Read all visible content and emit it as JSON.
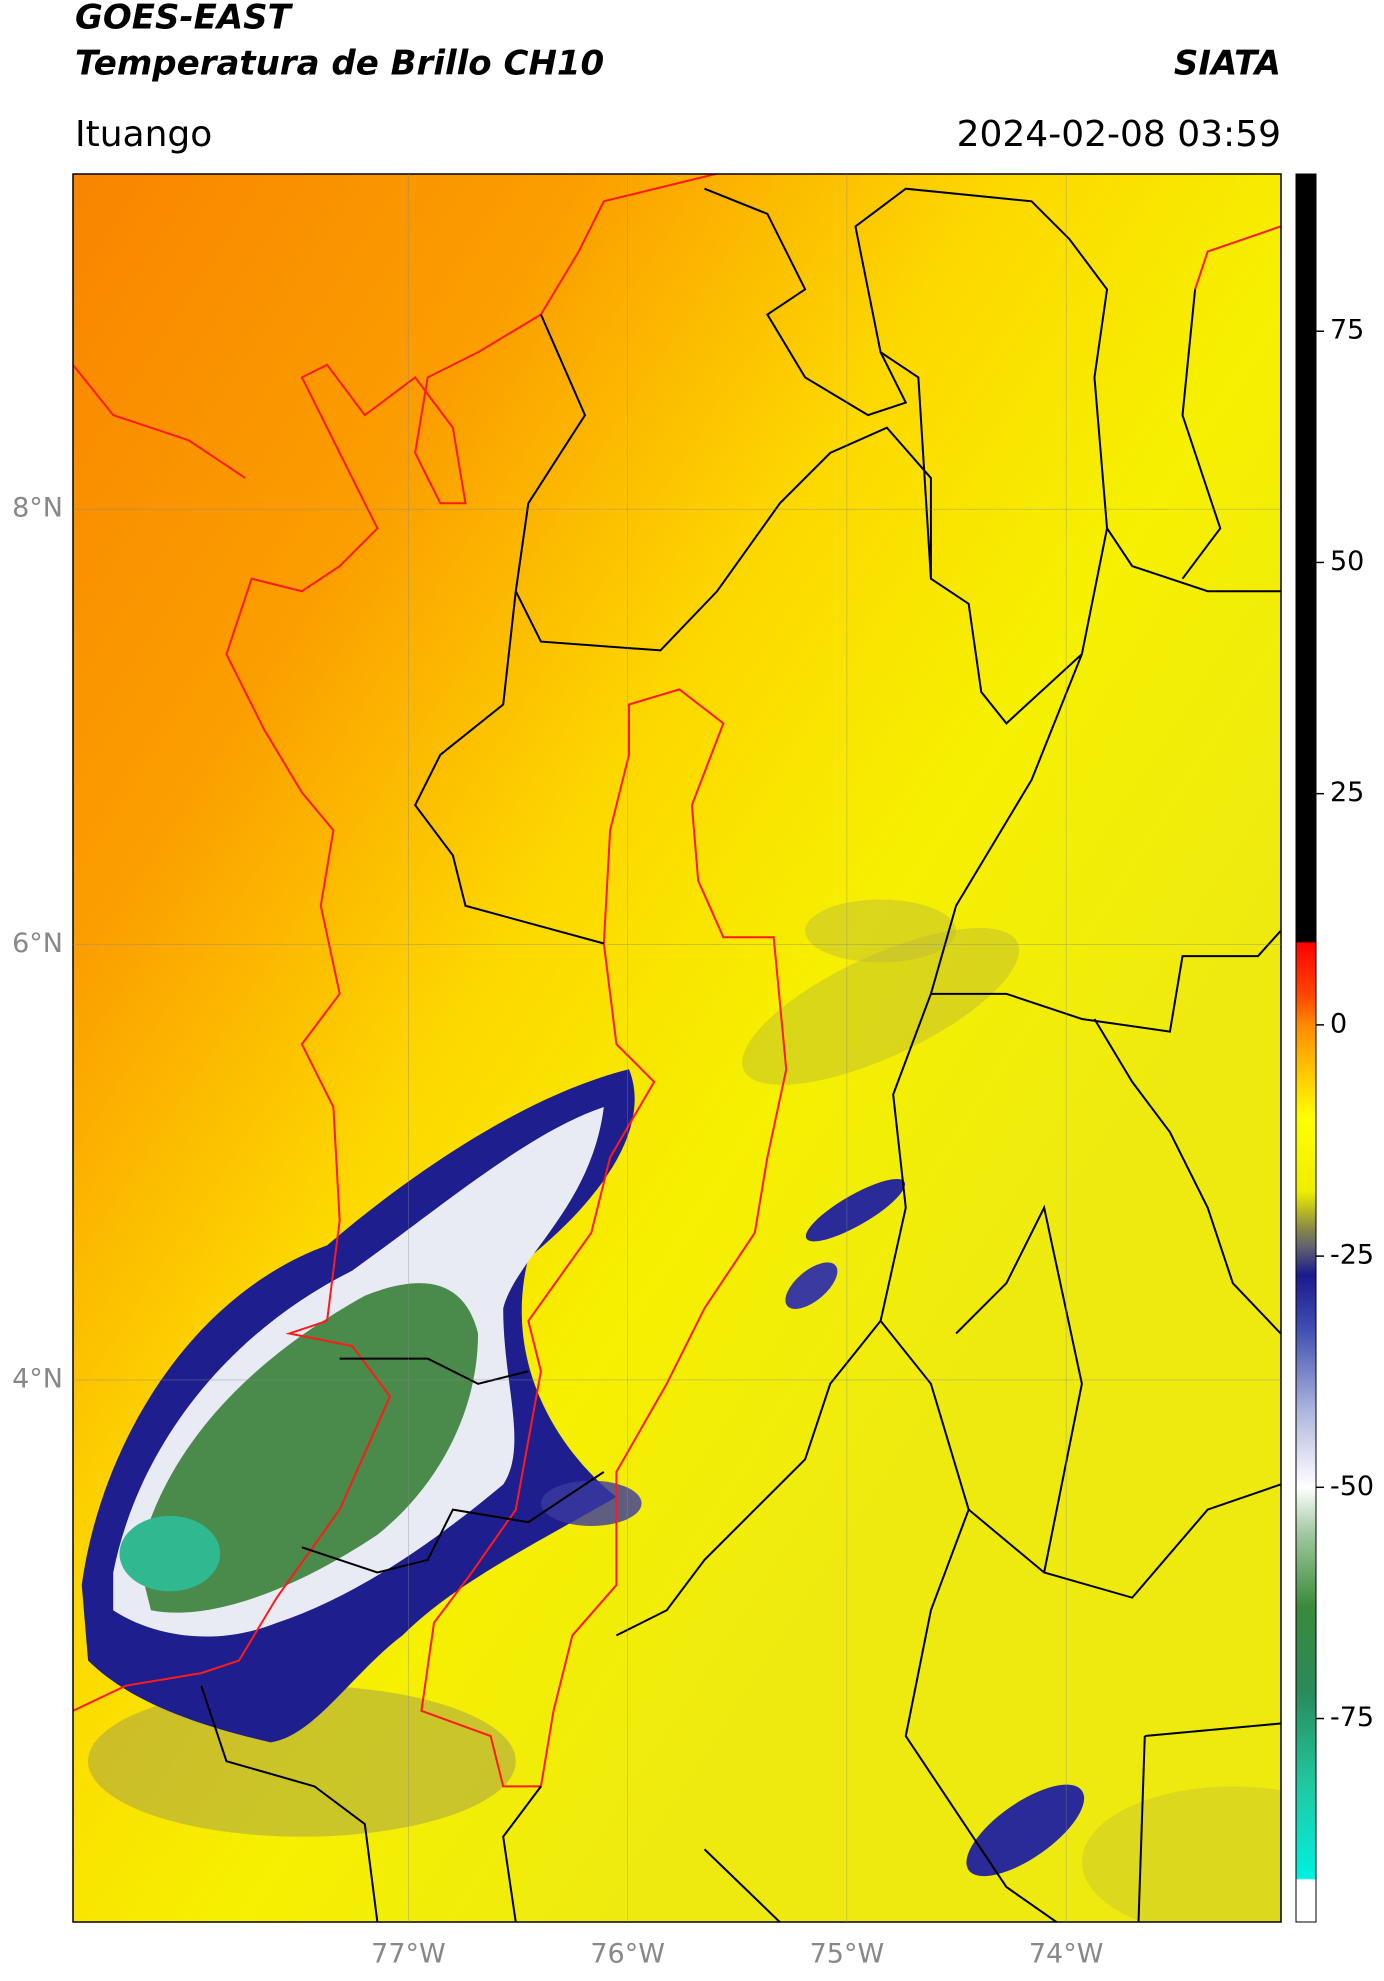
{
  "chart_data": {
    "type": "map",
    "title": "GOES-EAST",
    "subtitle": "Temperatura de Brillo CH10",
    "source": "SIATA",
    "location": "Ituango",
    "timestamp": "2024-02-08 03:59",
    "xlim": [
      -78.53,
      -73.02
    ],
    "ylim": [
      1.51,
      9.54
    ],
    "xticks": [
      {
        "value": -77,
        "label": "77°W"
      },
      {
        "value": -76,
        "label": "76°W"
      },
      {
        "value": -75,
        "label": "75°W"
      },
      {
        "value": -74,
        "label": "74°W"
      }
    ],
    "yticks": [
      {
        "value": 8,
        "label": "8°N"
      },
      {
        "value": 6,
        "label": "6°N"
      },
      {
        "value": 4,
        "label": "4°N"
      }
    ],
    "grid": true,
    "colorbar": {
      "lim": [
        -97,
        92
      ],
      "ticks": [
        75,
        50,
        25,
        0,
        -25,
        -50,
        -75
      ]
    }
  }
}
